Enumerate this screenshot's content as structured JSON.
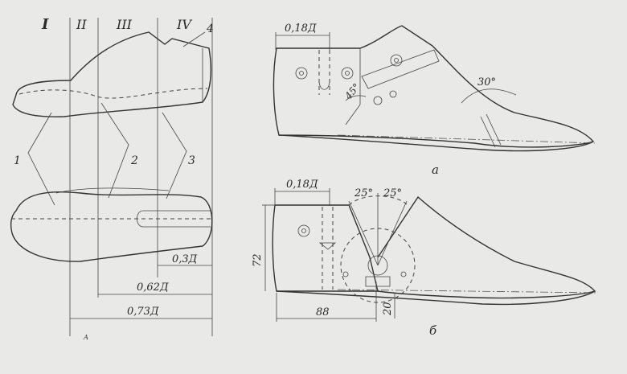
{
  "zones": [
    "I",
    "II",
    "III",
    "IV"
  ],
  "left_view": {
    "callouts": [
      "1",
      "2",
      "3",
      "4"
    ],
    "dimensions": [
      "0,3Д",
      "0,62Д",
      "0,73Д"
    ],
    "bottom_mark": "А"
  },
  "view_a": {
    "label": "а",
    "dimensions": [
      "0,18Д"
    ],
    "angles": [
      "45°",
      "30°"
    ]
  },
  "view_b": {
    "label": "б",
    "dimensions": [
      "0,18Д",
      "72",
      "88",
      "20"
    ],
    "angles": [
      "25°",
      "25°"
    ]
  }
}
